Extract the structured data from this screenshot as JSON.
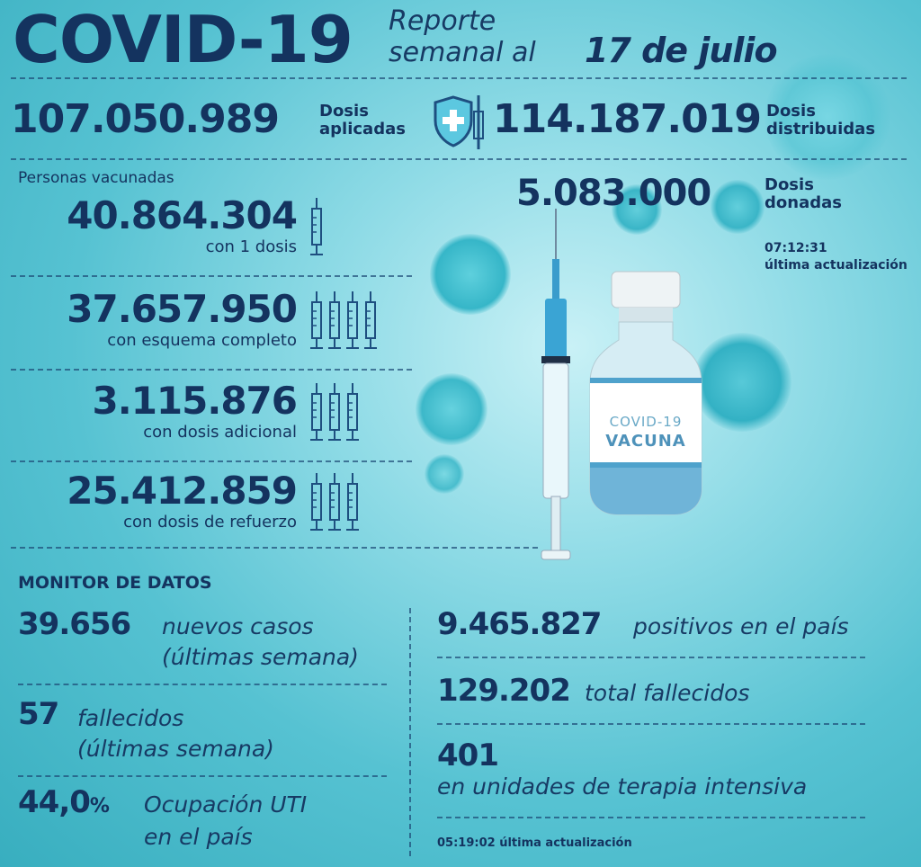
{
  "header": {
    "title": "COVID-19",
    "subtitle_line1": "Reporte",
    "subtitle_line2": "semanal al",
    "date": "17 de julio"
  },
  "doses": {
    "applied_value": "107.050.989",
    "applied_label_1": "Dosis",
    "applied_label_2": "aplicadas",
    "distributed_value": "114.187.019",
    "distributed_label_1": "Dosis",
    "distributed_label_2": "distribuidas",
    "donated_value": "5.083.000",
    "donated_label_1": "Dosis",
    "donated_label_2": "donadas",
    "update_time": "07:12:31",
    "update_label": "última actualización"
  },
  "vaccinated": {
    "title": "Personas vacunadas",
    "rows": [
      {
        "value": "40.864.304",
        "label": "con 1 dosis",
        "icons": 1
      },
      {
        "value": "37.657.950",
        "label": "con esquema completo",
        "icons": 4
      },
      {
        "value": "3.115.876",
        "label": "con dosis adicional",
        "icons": 3
      },
      {
        "value": "25.412.859",
        "label": "con dosis de refuerzo",
        "icons": 3
      }
    ]
  },
  "vial": {
    "line1": "COVID-19",
    "line2": "VACUNA"
  },
  "monitor": {
    "title": "MONITOR DE DATOS",
    "new_cases_value": "39.656",
    "new_cases_label": "nuevos casos",
    "new_cases_period": "(últimas semana)",
    "deaths_value": "57",
    "deaths_label": "fallecidos",
    "deaths_period": "(últimas semana)",
    "icu_value": "44,0",
    "icu_percent": "%",
    "icu_label_1": "Ocupación UTI",
    "icu_label_2": "en el país",
    "positives_value": "9.465.827",
    "positives_label": "positivos en el país",
    "total_deaths_value": "129.202",
    "total_deaths_label": "total fallecidos",
    "icu_units_value": "401",
    "icu_units_label": "en unidades de terapia intensiva",
    "update_time": "05:19:02",
    "update_label": "última actualización"
  },
  "colors": {
    "navy": "#14335f",
    "virus": "#3fb9cc",
    "vial_blue": "#7cc3dc"
  },
  "icons": [
    "shield-plus-icon",
    "syringe-icon",
    "virus-icon",
    "vaccine-vial-icon"
  ]
}
